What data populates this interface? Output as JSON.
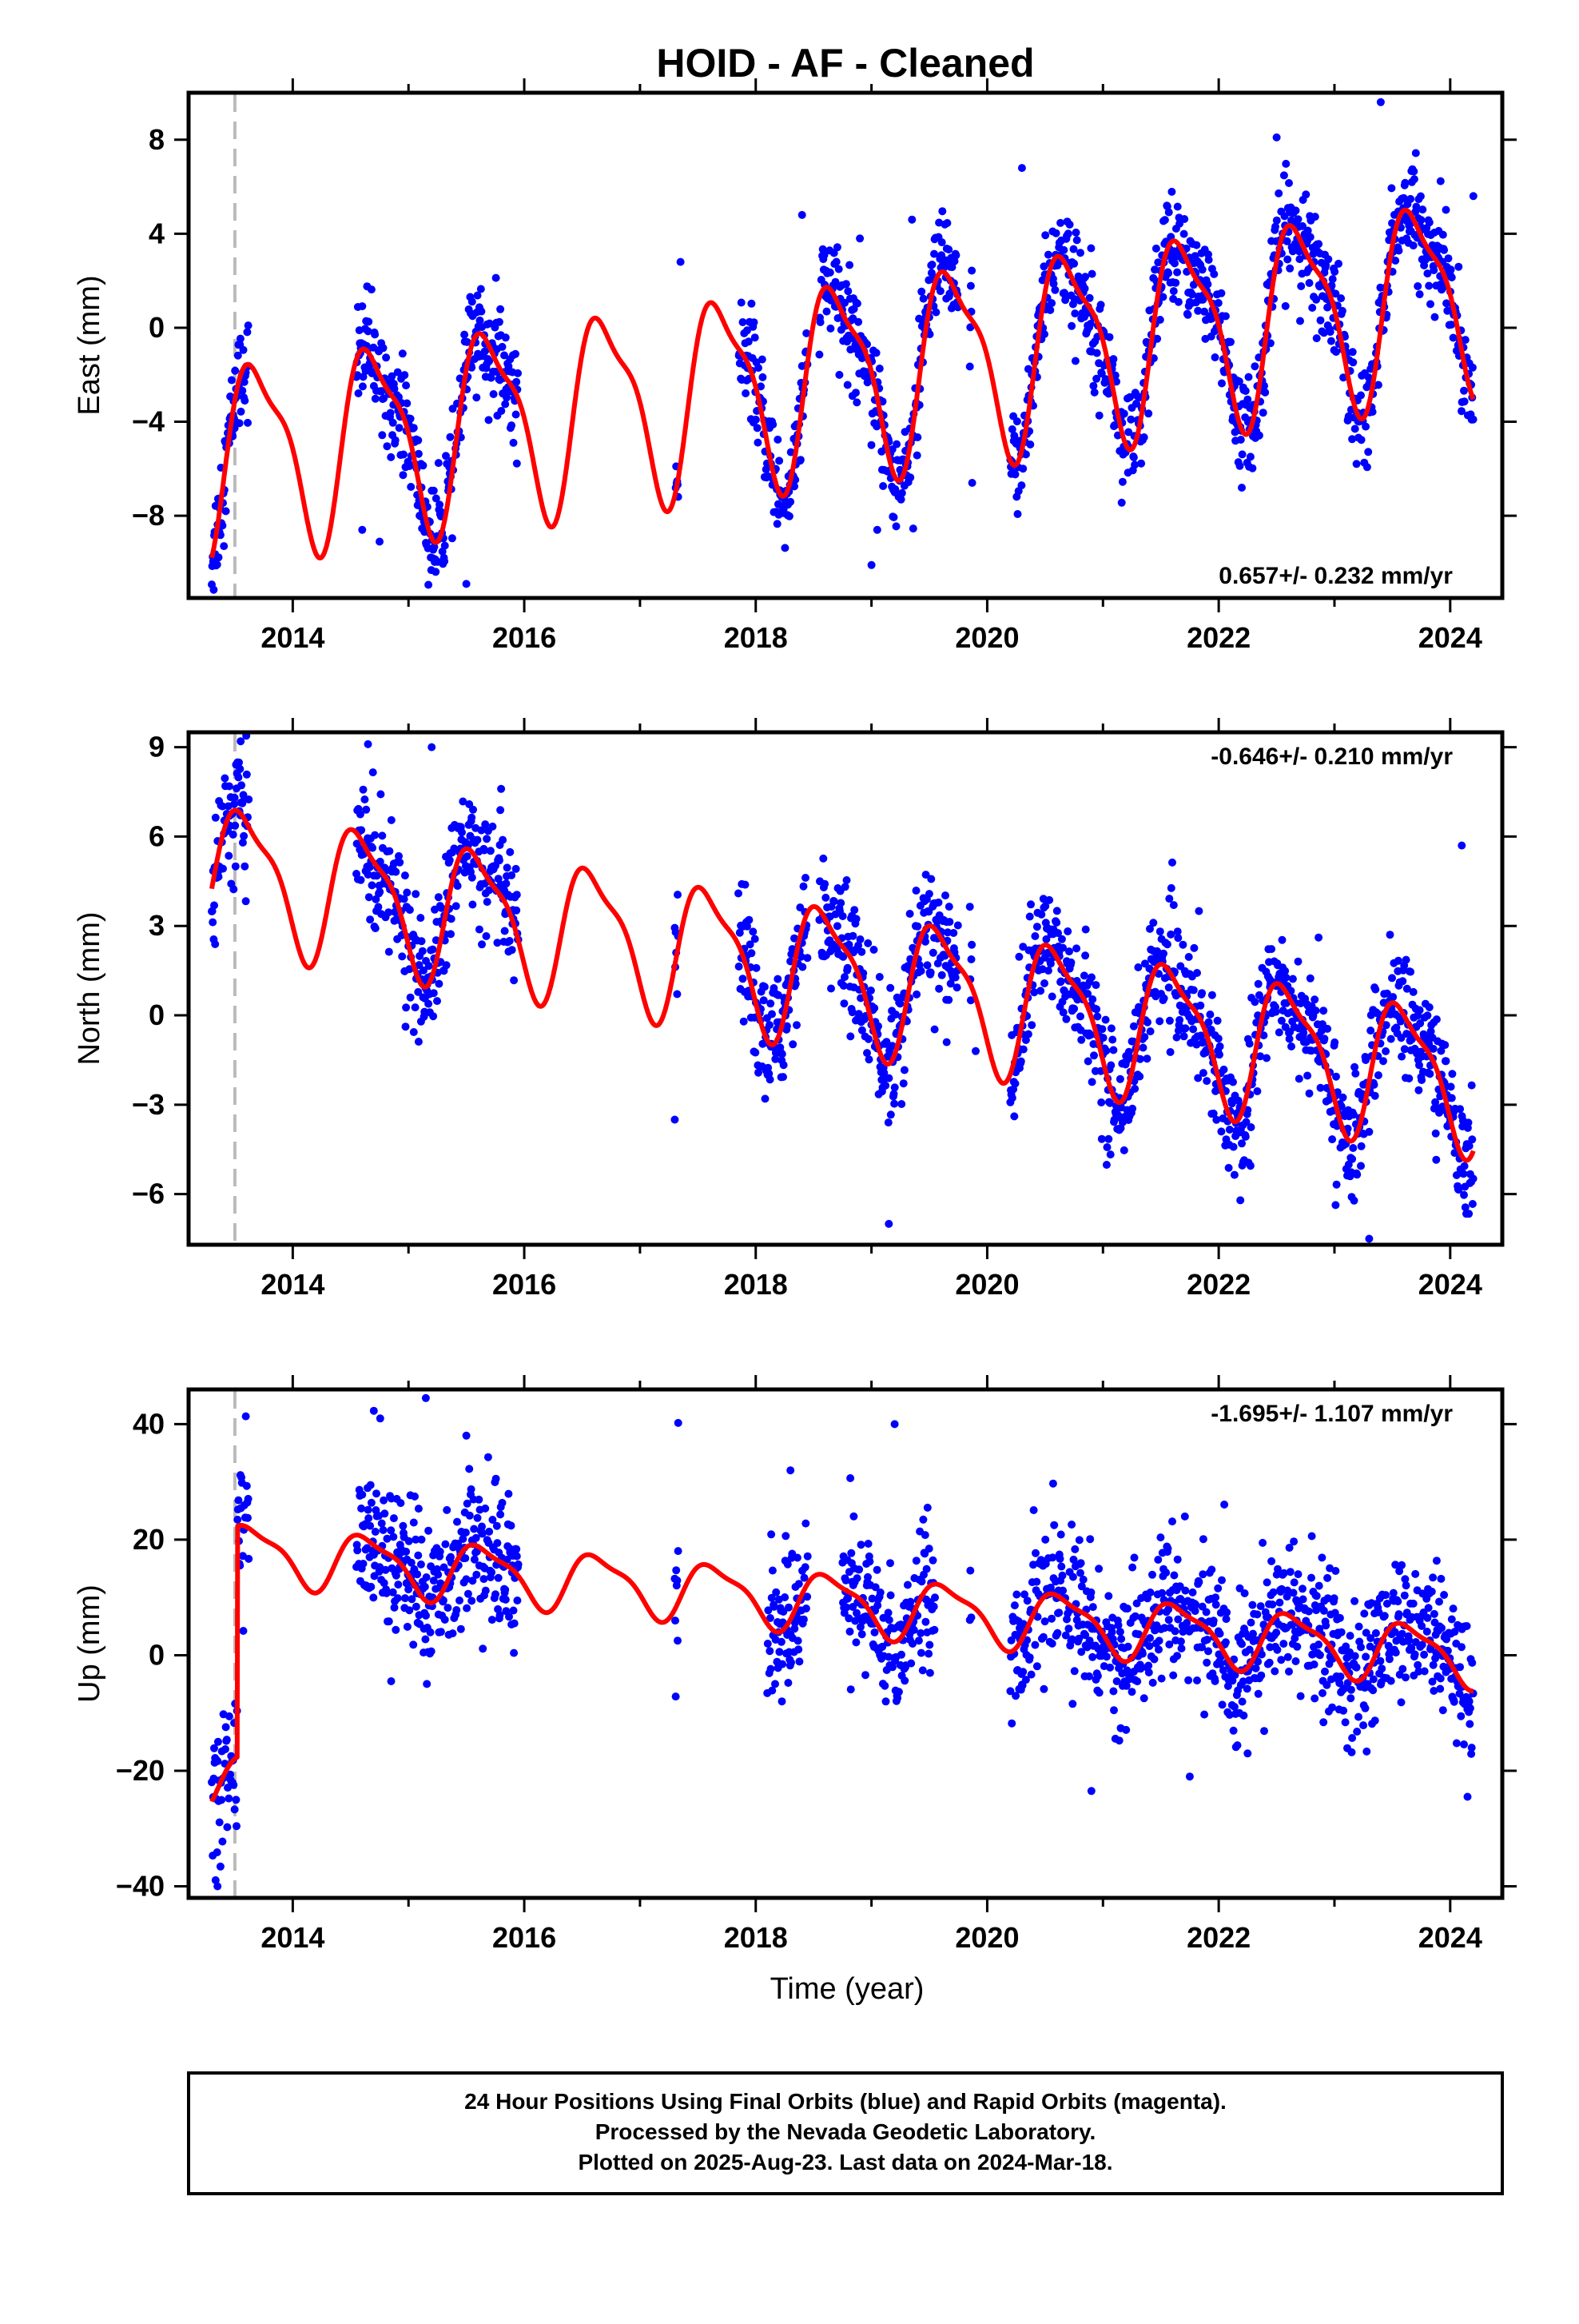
{
  "title": "HOID  - AF - Cleaned",
  "xlabel": "Time (year)",
  "footer": {
    "lines": [
      "24 Hour Positions Using Final Orbits (blue) and Rapid Orbits (magenta).",
      "Processed by the Nevada Geodetic Laboratory.",
      "Plotted on 2025-Aug-23. Last data on 2024-Mar-18."
    ]
  },
  "colors": {
    "data": "#0000ff",
    "model": "#ff0000",
    "break": "#bbbbbb"
  },
  "chart_data": [
    {
      "type": "scatter",
      "ylabel": "East (mm)",
      "rate_label": "0.657+/- 0.232 mm/yr",
      "xlim": [
        2013.1,
        2024.45
      ],
      "ylim": [
        -11.5,
        10
      ],
      "xticks": [
        2014,
        2016,
        2018,
        2020,
        2022,
        2024
      ],
      "yticks": [
        -8,
        -4,
        0,
        4,
        8
      ],
      "equipment_change_year": 2013.5,
      "model": {
        "offset": -1.8,
        "rate": 0.657,
        "ref_year": 2019,
        "amp": 3.9,
        "phase_year": 2013.45,
        "step": 0
      },
      "data_spans": [
        [
          2013.3,
          2013.62
        ],
        [
          2014.55,
          2015.95
        ],
        [
          2017.3,
          2017.33
        ],
        [
          2017.85,
          2018.45
        ],
        [
          2018.55,
          2019.75
        ],
        [
          2019.85,
          2019.87
        ],
        [
          2020.2,
          2024.2
        ]
      ],
      "noise": 1.1,
      "outliers": [
        [
          2015.5,
          -10.9
        ],
        [
          2019.0,
          -10.1
        ],
        [
          2014.6,
          -8.6
        ],
        [
          2014.75,
          -9.1
        ],
        [
          2019.05,
          -8.6
        ],
        [
          2023.4,
          9.6
        ],
        [
          2022.5,
          8.1
        ],
        [
          2020.3,
          6.8
        ],
        [
          2017.35,
          2.8
        ],
        [
          2019.35,
          4.6
        ],
        [
          2018.4,
          4.8
        ],
        [
          2018.9,
          3.8
        ],
        [
          2019.87,
          -6.6
        ],
        [
          2024.2,
          5.6
        ]
      ]
    },
    {
      "type": "scatter",
      "ylabel": "North (mm)",
      "rate_label": "-0.646+/- 0.210 mm/yr",
      "xlim": [
        2013.1,
        2024.45
      ],
      "ylim": [
        -7.7,
        9.5
      ],
      "xticks": [
        2014,
        2016,
        2018,
        2020,
        2022,
        2024
      ],
      "yticks": [
        -6,
        -3,
        0,
        3,
        6,
        9
      ],
      "equipment_change_year": 2013.5,
      "model": {
        "offset": 1.2,
        "rate": -0.646,
        "ref_year": 2019,
        "amp": 2.2,
        "phase_year": 2013.35,
        "step": 0
      },
      "data_spans": [
        [
          2013.3,
          2013.62
        ],
        [
          2014.55,
          2015.95
        ],
        [
          2017.3,
          2017.33
        ],
        [
          2017.85,
          2018.45
        ],
        [
          2018.55,
          2019.75
        ],
        [
          2019.85,
          2019.87
        ],
        [
          2020.2,
          2024.2
        ]
      ],
      "noise": 1.0,
      "outliers": [
        [
          2013.55,
          9.2
        ],
        [
          2014.65,
          9.1
        ],
        [
          2015.2,
          9.0
        ],
        [
          2019.15,
          -7.0
        ],
        [
          2023.3,
          -7.5
        ],
        [
          2017.3,
          -3.5
        ],
        [
          2024.1,
          5.7
        ],
        [
          2015.8,
          7.6
        ],
        [
          2019.9,
          -1.2
        ],
        [
          2019.65,
          -0.9
        ]
      ]
    },
    {
      "type": "scatter",
      "ylabel": "Up (mm)",
      "rate_label": "-1.695+/- 1.107 mm/yr",
      "xlim": [
        2013.1,
        2024.45
      ],
      "ylim": [
        -42,
        46
      ],
      "xticks": [
        2014,
        2016,
        2018,
        2020,
        2022,
        2024
      ],
      "yticks": [
        -40,
        -20,
        0,
        20,
        40
      ],
      "equipment_change_year": 2013.5,
      "model": {
        "offset": 8.6,
        "rate": -1.695,
        "ref_year": 2019,
        "amp": 4.8,
        "phase_year": 2013.4,
        "step": -40
      },
      "data_spans": [
        [
          2013.3,
          2013.62
        ],
        [
          2014.55,
          2015.95
        ],
        [
          2017.3,
          2017.33
        ],
        [
          2018.1,
          2018.45
        ],
        [
          2018.75,
          2019.55
        ],
        [
          2019.85,
          2019.87
        ],
        [
          2020.2,
          2024.2
        ]
      ],
      "noise": 6.0,
      "outliers": [
        [
          2015.15,
          44.5
        ],
        [
          2014.7,
          42.3
        ],
        [
          2017.33,
          40.2
        ],
        [
          2019.2,
          40.0
        ],
        [
          2018.3,
          32.0
        ],
        [
          2014.85,
          -4.5
        ],
        [
          2020.9,
          -23.5
        ],
        [
          2024.15,
          -24.5
        ],
        [
          2013.35,
          -40.0
        ],
        [
          2021.75,
          -21.0
        ],
        [
          2015.5,
          38.0
        ]
      ]
    }
  ]
}
